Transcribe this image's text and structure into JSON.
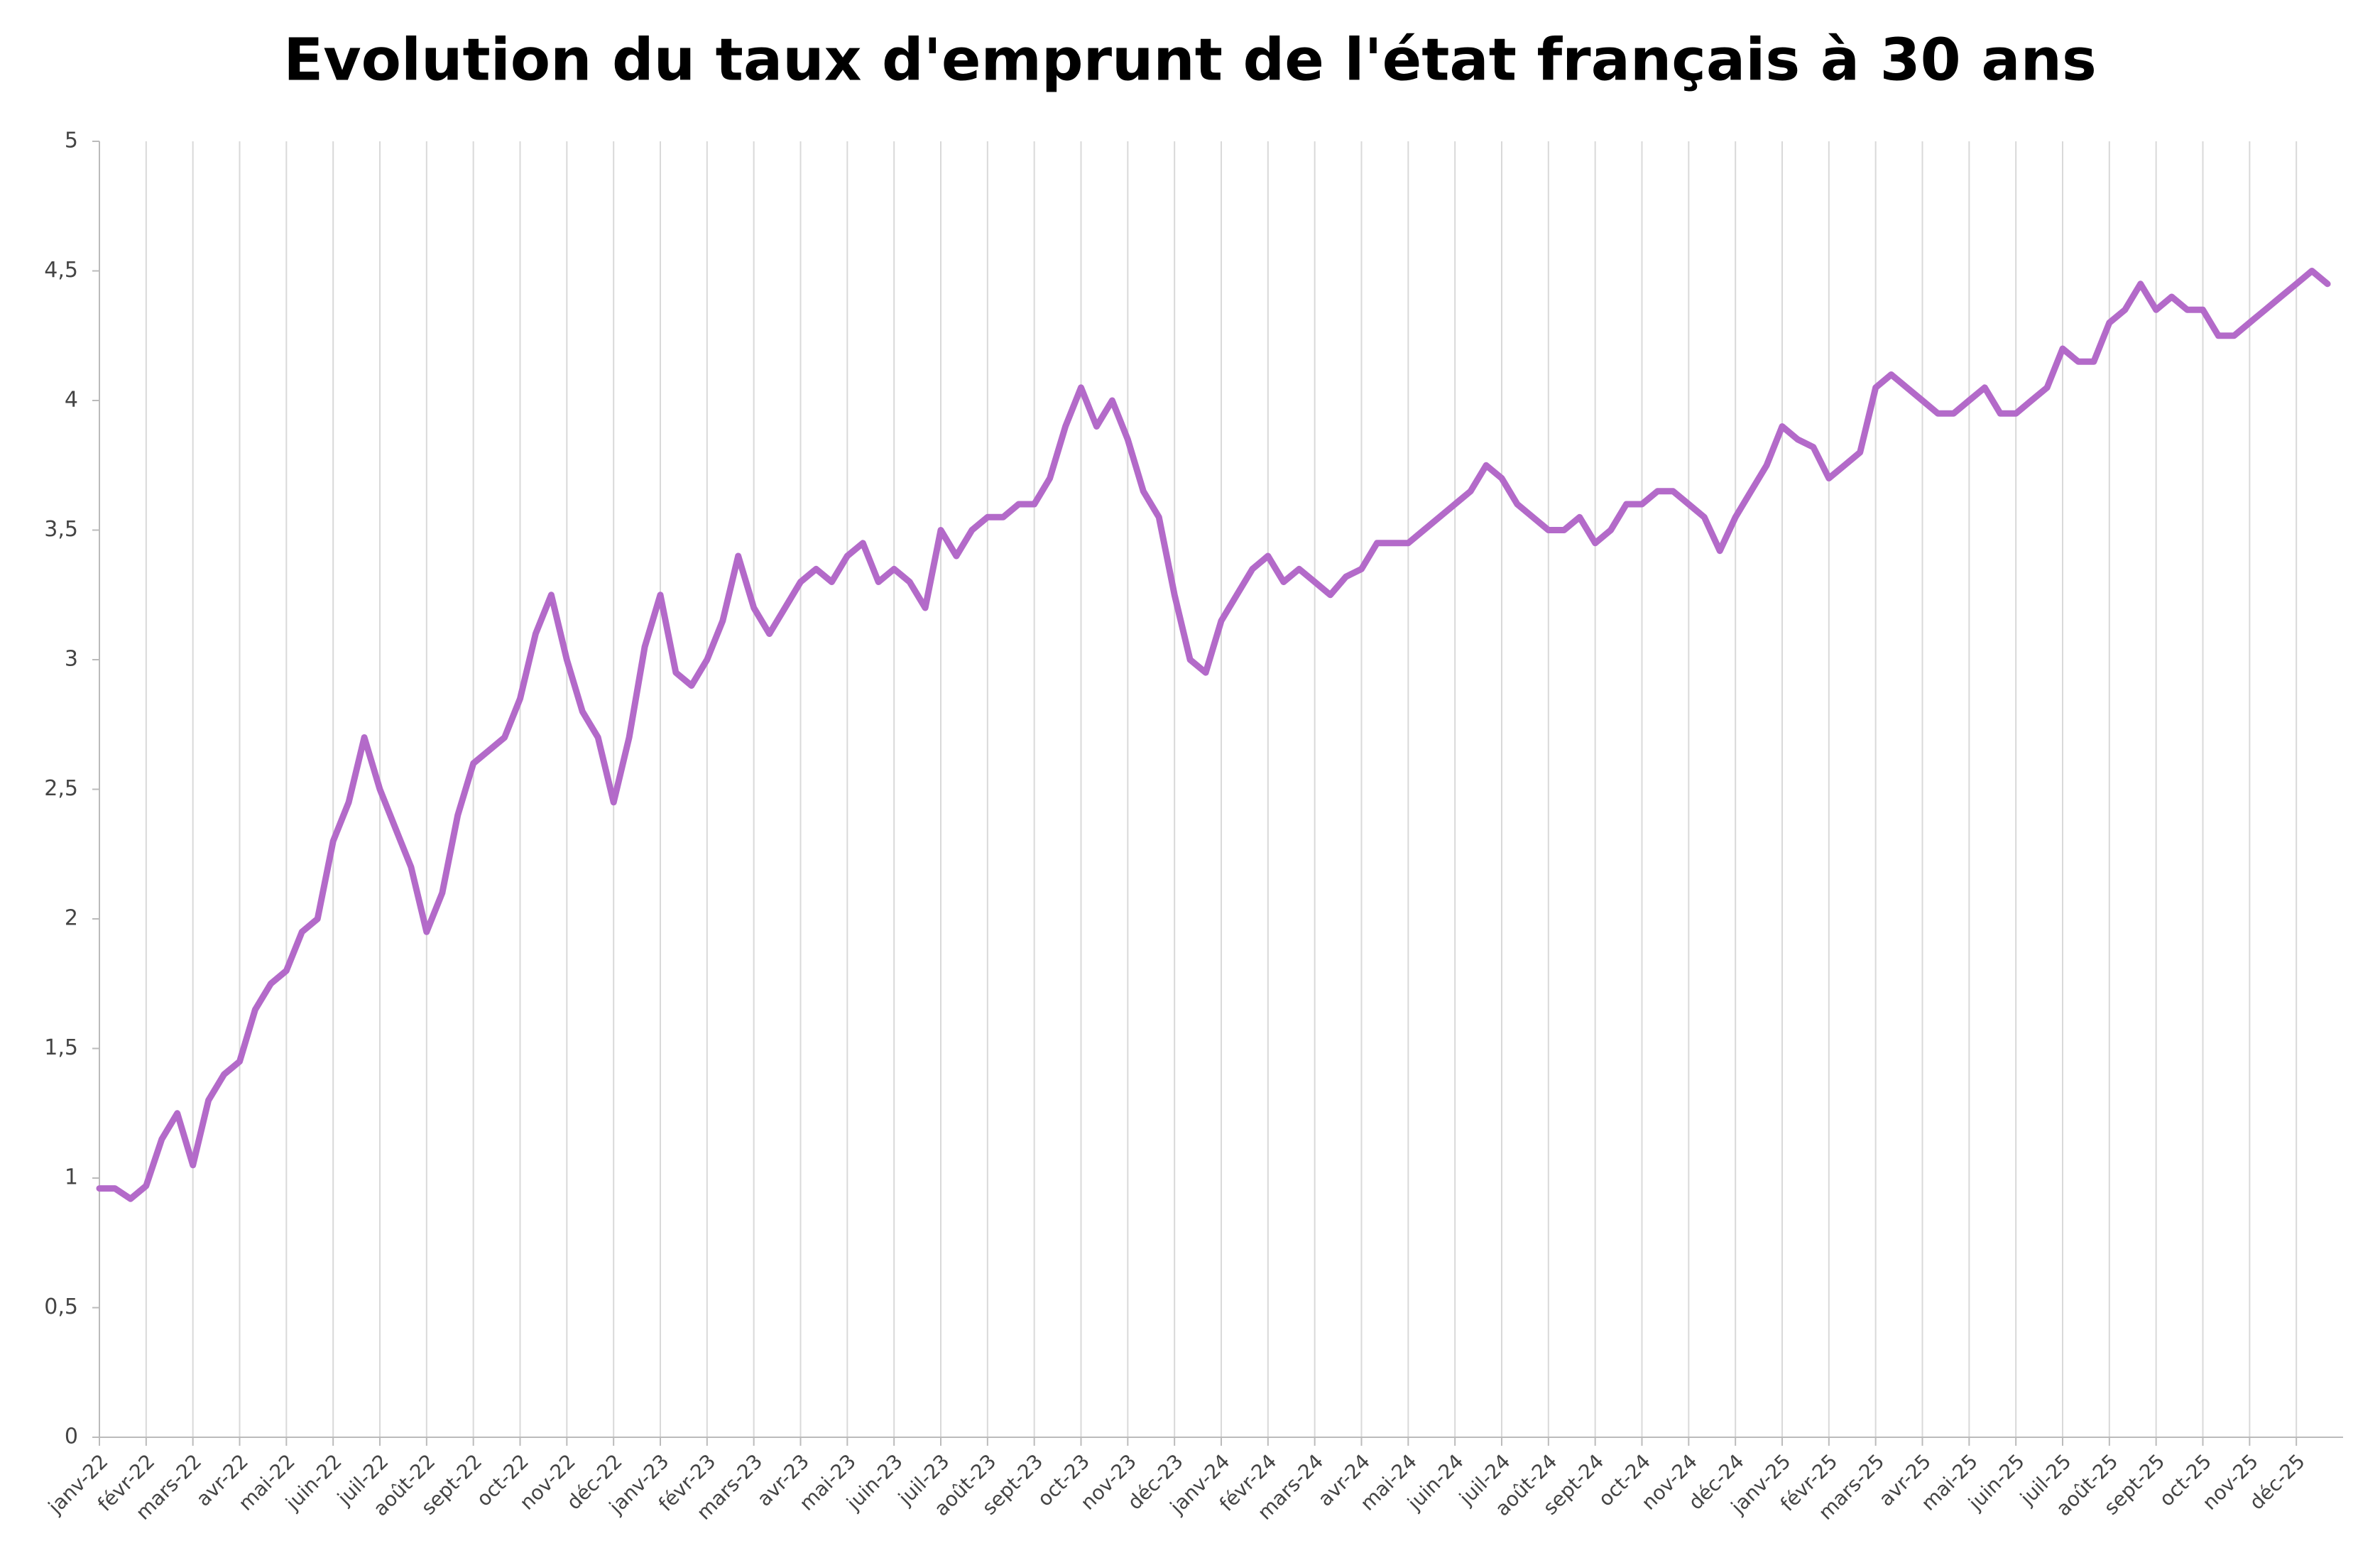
{
  "chart_data": {
    "type": "line",
    "title": "Evolution du taux d'emprunt de l'état français à 30 ans",
    "categories": [
      "janv-22",
      null,
      null,
      "févr-22",
      null,
      null,
      "mars-22",
      null,
      null,
      "avr-22",
      null,
      null,
      "mai-22",
      null,
      null,
      "juin-22",
      null,
      null,
      "juil-22",
      null,
      null,
      "août-22",
      null,
      null,
      "sept-22",
      null,
      null,
      "oct-22",
      null,
      null,
      "nov-22",
      null,
      null,
      "déc-22",
      null,
      null,
      "janv-23",
      null,
      null,
      "févr-23",
      null,
      null,
      "mars-23",
      null,
      null,
      "avr-23",
      null,
      null,
      "mai-23",
      null,
      null,
      "juin-23",
      null,
      null,
      "juil-23",
      null,
      null,
      "août-23",
      null,
      null,
      "sept-23",
      null,
      null,
      "oct-23",
      null,
      null,
      "nov-23",
      null,
      null,
      "déc-23",
      null,
      null,
      "janv-24",
      null,
      null,
      "févr-24",
      null,
      null,
      "mars-24",
      null,
      null,
      "avr-24",
      null,
      null,
      "mai-24",
      null,
      null,
      "juin-24",
      null,
      null,
      "juil-24",
      null,
      null,
      "août-24",
      null,
      null,
      "sept-24",
      null,
      null,
      "oct-24",
      null,
      null,
      "nov-24",
      null,
      null,
      "déc-24",
      null,
      null,
      "janv-25",
      null,
      null,
      "févr-25",
      null,
      null,
      "mars-25",
      null,
      null,
      "avr-25",
      null,
      null,
      "mai-25",
      null,
      null,
      "juin-25",
      null,
      null,
      "juil-25",
      null,
      null,
      "août-25",
      null,
      null,
      "sept-25",
      null,
      null,
      "oct-25",
      null,
      null,
      "nov-25",
      null,
      null,
      "déc-25",
      null,
      null
    ],
    "values": [
      0.96,
      0.96,
      0.92,
      0.97,
      1.15,
      1.25,
      1.05,
      1.3,
      1.4,
      1.45,
      1.65,
      1.75,
      1.8,
      1.95,
      2.0,
      2.3,
      2.45,
      2.7,
      2.5,
      2.35,
      2.2,
      1.95,
      2.1,
      2.4,
      2.6,
      2.65,
      2.7,
      2.85,
      3.1,
      3.25,
      3.0,
      2.8,
      2.7,
      2.45,
      2.7,
      3.05,
      3.25,
      2.95,
      2.9,
      3.0,
      3.15,
      3.4,
      3.2,
      3.1,
      3.2,
      3.3,
      3.35,
      3.3,
      3.4,
      3.45,
      3.3,
      3.35,
      3.3,
      3.2,
      3.5,
      3.4,
      3.5,
      3.55,
      3.55,
      3.6,
      3.6,
      3.7,
      3.9,
      4.05,
      3.9,
      4.0,
      3.85,
      3.65,
      3.55,
      3.25,
      3.0,
      2.95,
      3.15,
      3.25,
      3.35,
      3.4,
      3.3,
      3.35,
      3.3,
      3.25,
      3.32,
      3.35,
      3.45,
      3.45,
      3.45,
      3.5,
      3.55,
      3.6,
      3.65,
      3.75,
      3.7,
      3.6,
      3.55,
      3.5,
      3.5,
      3.55,
      3.45,
      3.5,
      3.6,
      3.6,
      3.65,
      3.65,
      3.6,
      3.55,
      3.42,
      3.55,
      3.65,
      3.75,
      3.9,
      3.85,
      3.82,
      3.7,
      3.75,
      3.8,
      4.05,
      4.1,
      4.05,
      4.0,
      3.95,
      3.95,
      4.0,
      4.05,
      3.95,
      3.95,
      4.0,
      4.05,
      4.2,
      4.15,
      4.15,
      4.3,
      4.35,
      4.45,
      4.35,
      4.4,
      4.35,
      4.35,
      4.25,
      4.25,
      4.3,
      4.35,
      4.4,
      4.45,
      4.5,
      4.45
    ],
    "color": "#b36ac9",
    "ylim": [
      0,
      5
    ],
    "yticks": [
      0,
      {
        "value": 0.5,
        "label": "0,5"
      },
      1,
      {
        "value": 1.5,
        "label": "1,5"
      },
      2,
      {
        "value": 2.5,
        "label": "2,5"
      },
      3,
      {
        "value": 3.5,
        "label": "3,5"
      },
      4,
      {
        "value": 4.5,
        "label": "4,5"
      },
      5
    ],
    "grid": "x"
  }
}
